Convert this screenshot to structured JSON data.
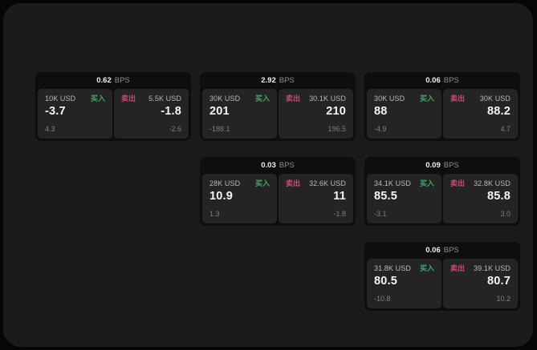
{
  "labels": {
    "bps_unit": "BPS",
    "buy": "买入",
    "sell": "卖出"
  },
  "colors": {
    "page_bg": "#060606",
    "panel_bg": "#1b1b1b",
    "card_bg": "#0e0e0e",
    "cell_bg": "#242424",
    "buy": "#3fa96a",
    "sell": "#c94f6d",
    "value_text": "#f5f5f5",
    "label_text": "#bababa",
    "sub_text": "#7f7f7f"
  },
  "cards": [
    {
      "bps": "0.62",
      "col": 1,
      "row": 1,
      "buy": {
        "amount": "10K USD",
        "value": "-3.7",
        "sub": "4.3"
      },
      "sell": {
        "amount": "5.5K USD",
        "value": "-1.8",
        "sub": "-2.6"
      }
    },
    {
      "bps": "2.92",
      "col": 2,
      "row": 1,
      "buy": {
        "amount": "30K USD",
        "value": "201",
        "sub": "-188.1"
      },
      "sell": {
        "amount": "30.1K USD",
        "value": "210",
        "sub": "196.5"
      }
    },
    {
      "bps": "0.06",
      "col": 3,
      "row": 1,
      "buy": {
        "amount": "30K USD",
        "value": "88",
        "sub": "-4.9"
      },
      "sell": {
        "amount": "30K USD",
        "value": "88.2",
        "sub": "4.7"
      }
    },
    {
      "bps": "0.03",
      "col": 2,
      "row": 2,
      "buy": {
        "amount": "28K USD",
        "value": "10.9",
        "sub": "1.3"
      },
      "sell": {
        "amount": "32.6K USD",
        "value": "11",
        "sub": "-1.8"
      }
    },
    {
      "bps": "0.09",
      "col": 3,
      "row": 2,
      "buy": {
        "amount": "34.1K USD",
        "value": "85.5",
        "sub": "-3.1"
      },
      "sell": {
        "amount": "32.8K USD",
        "value": "85.8",
        "sub": "3.0"
      }
    },
    {
      "bps": "0.06",
      "col": 3,
      "row": 3,
      "buy": {
        "amount": "31.8K USD",
        "value": "80.5",
        "sub": "-10.8"
      },
      "sell": {
        "amount": "39.1K USD",
        "value": "80.7",
        "sub": "10.2"
      }
    }
  ]
}
